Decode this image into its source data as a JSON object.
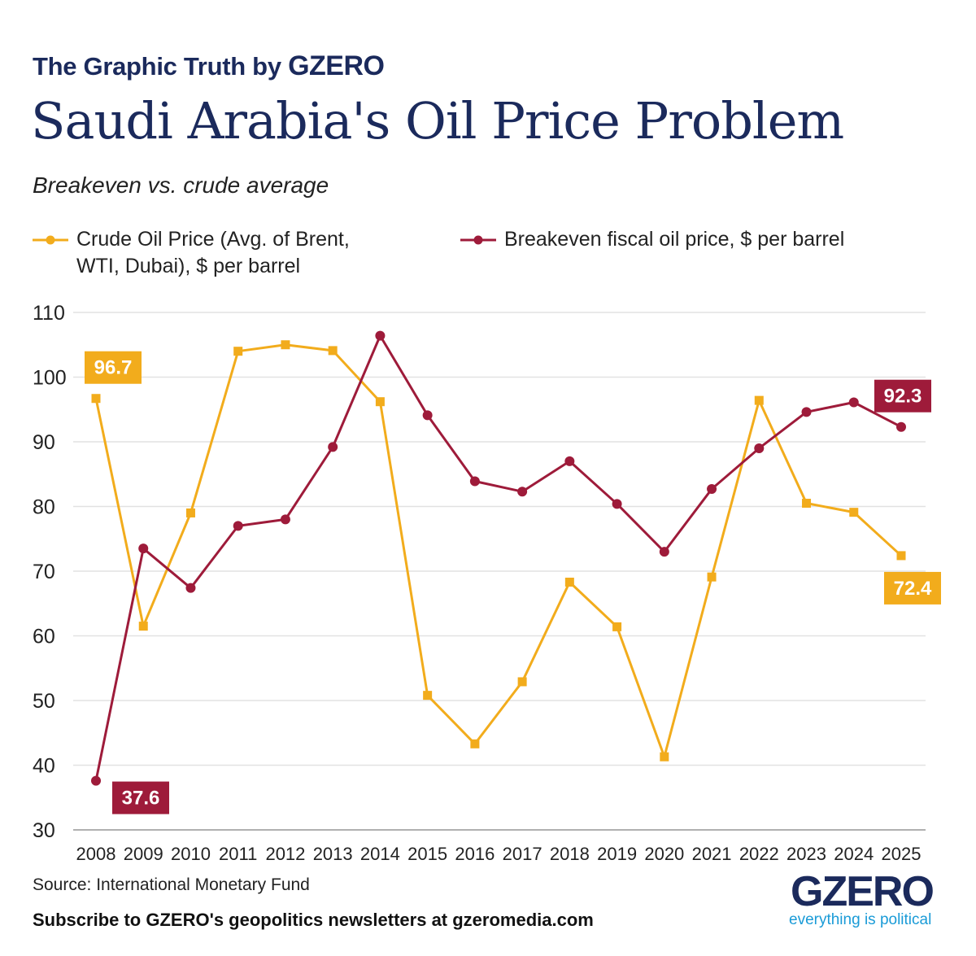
{
  "header": {
    "kicker": "The Graphic Truth by",
    "kicker_brand": "GZERO",
    "title": "Saudi Arabia's Oil Price Problem",
    "subtitle": "Breakeven vs. crude average"
  },
  "legend": {
    "crude_line1": "Crude Oil Price (Avg. of Brent,",
    "crude_line2": "WTI, Dubai), $ per barrel",
    "breakeven": "Breakeven fiscal oil price, $ per barrel"
  },
  "colors": {
    "crude": "#f2ac1c",
    "breakeven": "#9e1b3a",
    "title": "#1b2a5c",
    "grid": "#e2e2e2",
    "logo_tag": "#1a9bd7"
  },
  "chart_data": {
    "type": "line",
    "title": "Saudi Arabia's Oil Price Problem",
    "subtitle": "Breakeven vs. crude average",
    "x": [
      "2008",
      "2009",
      "2010",
      "2011",
      "2012",
      "2013",
      "2014",
      "2015",
      "2016",
      "2017",
      "2018",
      "2019",
      "2020",
      "2021",
      "2022",
      "2023",
      "2024",
      "2025"
    ],
    "ylim": [
      30,
      110
    ],
    "yticks": [
      30,
      40,
      50,
      60,
      70,
      80,
      90,
      100,
      110
    ],
    "grid": true,
    "legend_position": "top",
    "series": [
      {
        "name": "Crude Oil Price (Avg. of Brent, WTI, Dubai), $ per barrel",
        "marker": "square",
        "values": [
          96.7,
          61.5,
          79.0,
          104.0,
          105.0,
          104.1,
          96.2,
          50.8,
          43.3,
          52.9,
          68.3,
          61.4,
          41.3,
          69.1,
          96.4,
          80.5,
          79.1,
          72.4
        ]
      },
      {
        "name": "Breakeven fiscal oil price, $ per barrel",
        "marker": "circle",
        "values": [
          37.6,
          73.5,
          67.4,
          77.0,
          78.0,
          89.2,
          106.4,
          94.1,
          83.9,
          82.3,
          87.0,
          80.4,
          73.0,
          82.7,
          89.0,
          94.6,
          96.1,
          92.3
        ]
      }
    ],
    "annotations": [
      {
        "series": 0,
        "index": 0,
        "text": "96.7",
        "placement": "above"
      },
      {
        "series": 0,
        "index": 17,
        "text": "72.4",
        "placement": "below"
      },
      {
        "series": 1,
        "index": 0,
        "text": "37.6",
        "placement": "below-right"
      },
      {
        "series": 1,
        "index": 17,
        "text": "92.3",
        "placement": "above"
      }
    ]
  },
  "footer": {
    "source": "Source: International Monetary Fund",
    "subscribe": "Subscribe to GZERO's geopolitics newsletters at gzeromedia.com",
    "logo_word": "GZERO",
    "logo_tag": "everything is political"
  }
}
